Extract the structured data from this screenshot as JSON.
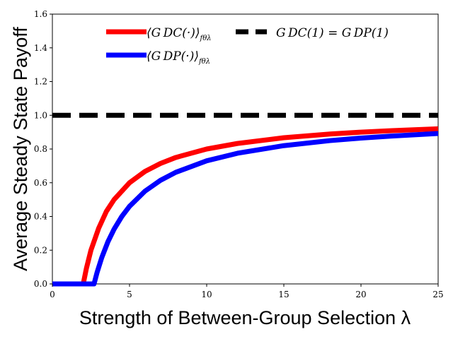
{
  "chart_data": {
    "type": "line",
    "xlabel": "Strength of Between-Group Selection λ",
    "ylabel": "Average Steady State Payoff",
    "xlim": [
      0,
      25
    ],
    "ylim": [
      0,
      1.6
    ],
    "x_ticks": [
      0,
      5,
      10,
      15,
      20,
      25
    ],
    "y_ticks": [
      0.0,
      0.2,
      0.4,
      0.6,
      0.8,
      1.0,
      1.2,
      1.4,
      1.6
    ],
    "x_tick_labels": [
      "0",
      "5",
      "10",
      "15",
      "20",
      "25"
    ],
    "y_tick_labels": [
      "0.0",
      "0.2",
      "0.4",
      "0.6",
      "0.8",
      "1.0",
      "1.2",
      "1.4",
      "1.6"
    ],
    "grid": false,
    "legend_position": "top",
    "series": [
      {
        "name": "⟨G_DC(·)⟩_{f_θ^λ}",
        "legend_main": "⟨G DC(·)⟩",
        "color": "#ff0000",
        "style": "solid",
        "x": [
          0,
          2,
          2.2,
          2.5,
          3,
          3.5,
          4,
          5,
          6,
          7,
          8,
          10,
          12,
          15,
          18,
          20,
          22,
          25
        ],
        "y": [
          0,
          0,
          0.09,
          0.2,
          0.33,
          0.43,
          0.5,
          0.6,
          0.667,
          0.714,
          0.75,
          0.8,
          0.833,
          0.867,
          0.889,
          0.9,
          0.909,
          0.92
        ]
      },
      {
        "name": "⟨G_DP(·)⟩_{f_θ^λ}",
        "legend_main": "⟨G DP(·)⟩",
        "color": "#0000ff",
        "style": "solid",
        "x": [
          0,
          2.7,
          2.9,
          3.2,
          3.6,
          4,
          4.5,
          5,
          6,
          7,
          8,
          10,
          12,
          15,
          18,
          20,
          22,
          25
        ],
        "y": [
          0,
          0,
          0.069,
          0.156,
          0.25,
          0.325,
          0.4,
          0.46,
          0.55,
          0.614,
          0.662,
          0.73,
          0.775,
          0.82,
          0.85,
          0.865,
          0.877,
          0.892
        ]
      },
      {
        "name": "G_DC(1) = G_DP(1)",
        "legend_main": "G DC(1) = G DP(1)",
        "color": "#000000",
        "style": "dashed",
        "x": [
          0,
          25
        ],
        "y": [
          1.0,
          1.0
        ]
      }
    ]
  }
}
